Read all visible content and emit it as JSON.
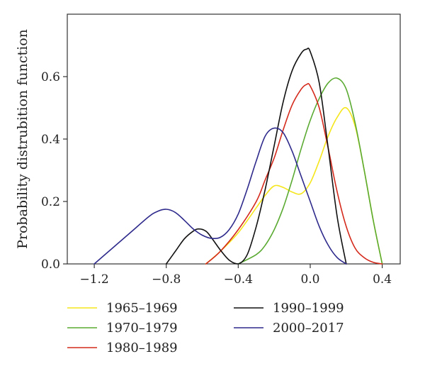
{
  "chart_data": {
    "type": "line",
    "title": "",
    "xlabel": "",
    "ylabel": "Probability distrubition function",
    "xlim": [
      -1.35,
      0.5
    ],
    "ylim": [
      0,
      0.8
    ],
    "xticks": [
      -1.2,
      -0.8,
      -0.4,
      0.0,
      0.4
    ],
    "xtick_labels": [
      "−1.2",
      "−0.8",
      "−0.4",
      "0.0",
      "0.4"
    ],
    "yticks": [
      0.0,
      0.2,
      0.4,
      0.6
    ],
    "ytick_labels": [
      "0.0",
      "0.2",
      "0.4",
      "0.6"
    ],
    "grid": false,
    "legend": "below",
    "series": [
      {
        "name": "1965–1969",
        "color": "#f5e61c",
        "x": [
          -0.58,
          -0.5,
          -0.4,
          -0.3,
          -0.25,
          -0.2,
          -0.15,
          -0.1,
          -0.05,
          0.0,
          0.05,
          0.1,
          0.15,
          0.2,
          0.25,
          0.3,
          0.35,
          0.4
        ],
        "y": [
          0.0,
          0.04,
          0.1,
          0.18,
          0.22,
          0.25,
          0.245,
          0.23,
          0.225,
          0.26,
          0.33,
          0.41,
          0.47,
          0.5,
          0.44,
          0.3,
          0.14,
          0.0
        ]
      },
      {
        "name": "1970–1979",
        "color": "#5aaa32",
        "x": [
          -0.4,
          -0.3,
          -0.25,
          -0.2,
          -0.15,
          -0.1,
          -0.05,
          0.0,
          0.05,
          0.1,
          0.15,
          0.2,
          0.25,
          0.3,
          0.35,
          0.4
        ],
        "y": [
          0.0,
          0.03,
          0.06,
          0.11,
          0.18,
          0.27,
          0.37,
          0.46,
          0.53,
          0.58,
          0.595,
          0.56,
          0.45,
          0.3,
          0.14,
          0.0
        ]
      },
      {
        "name": "1980–1989",
        "color": "#d42a1c",
        "x": [
          -0.58,
          -0.5,
          -0.4,
          -0.3,
          -0.25,
          -0.2,
          -0.15,
          -0.1,
          -0.05,
          -0.02,
          0.0,
          0.05,
          0.1,
          0.15,
          0.2,
          0.25,
          0.3,
          0.35,
          0.4
        ],
        "y": [
          0.0,
          0.04,
          0.11,
          0.2,
          0.27,
          0.34,
          0.43,
          0.51,
          0.56,
          0.575,
          0.57,
          0.5,
          0.37,
          0.23,
          0.12,
          0.05,
          0.02,
          0.005,
          0.0
        ]
      },
      {
        "name": "1990–1999",
        "color": "#111111",
        "x": [
          -0.8,
          -0.75,
          -0.7,
          -0.65,
          -0.62,
          -0.58,
          -0.55,
          -0.5,
          -0.45,
          -0.4,
          -0.35,
          -0.3,
          -0.25,
          -0.2,
          -0.15,
          -0.1,
          -0.05,
          -0.02,
          0.0,
          0.05,
          0.1,
          0.15,
          0.2
        ],
        "y": [
          0.0,
          0.04,
          0.08,
          0.105,
          0.112,
          0.105,
          0.085,
          0.045,
          0.012,
          0.0,
          0.03,
          0.12,
          0.24,
          0.38,
          0.52,
          0.62,
          0.675,
          0.688,
          0.68,
          0.58,
          0.37,
          0.15,
          0.0
        ]
      },
      {
        "name": "2000–2017",
        "color": "#2e2a8c",
        "x": [
          -1.2,
          -1.1,
          -1.0,
          -0.9,
          -0.85,
          -0.8,
          -0.75,
          -0.7,
          -0.65,
          -0.6,
          -0.55,
          -0.5,
          -0.45,
          -0.4,
          -0.35,
          -0.3,
          -0.25,
          -0.2,
          -0.15,
          -0.1,
          -0.05,
          0.0,
          0.05,
          0.1,
          0.15,
          0.2
        ],
        "y": [
          0.0,
          0.05,
          0.1,
          0.15,
          0.168,
          0.175,
          0.165,
          0.14,
          0.112,
          0.092,
          0.082,
          0.085,
          0.11,
          0.16,
          0.24,
          0.33,
          0.41,
          0.435,
          0.42,
          0.36,
          0.28,
          0.2,
          0.12,
          0.06,
          0.02,
          0.0
        ]
      }
    ]
  }
}
